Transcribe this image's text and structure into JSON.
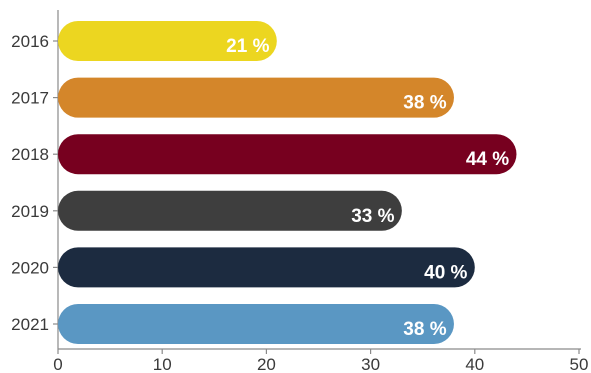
{
  "chart_data": {
    "type": "bar",
    "orientation": "horizontal",
    "categories": [
      "2016",
      "2017",
      "2018",
      "2019",
      "2020",
      "2021"
    ],
    "values": [
      21,
      38,
      44,
      33,
      40,
      38
    ],
    "value_labels": [
      "21 %",
      "38 %",
      "44 %",
      "33 %",
      "40 %",
      "38 %"
    ],
    "colors": [
      "#ecd620",
      "#d4862a",
      "#77001f",
      "#3e3e3e",
      "#1c2b40",
      "#5a97c3"
    ],
    "xlim": [
      0,
      50
    ],
    "xticks": [
      "0",
      "10",
      "20",
      "30",
      "40",
      "50"
    ],
    "title": "",
    "xlabel": "",
    "ylabel": "",
    "grid": false,
    "legend": "none"
  }
}
